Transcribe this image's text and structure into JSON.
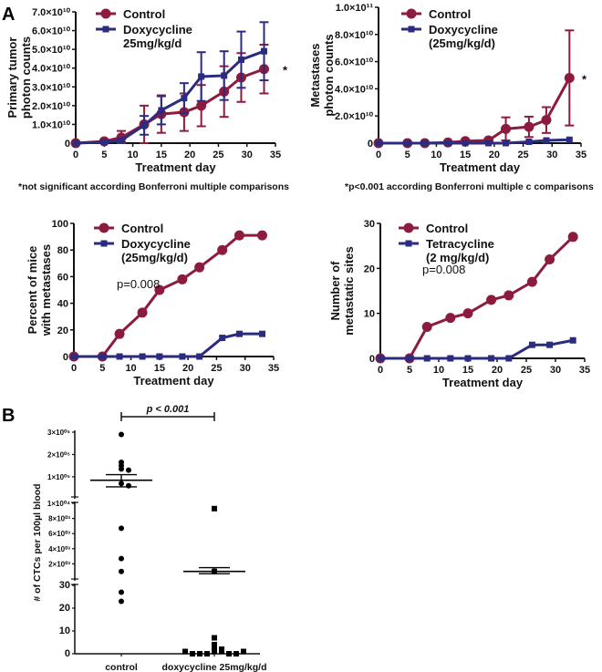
{
  "panel_labels": {
    "A": "A",
    "B": "B"
  },
  "colors": {
    "control": "#8C1B3E",
    "treatment": "#2B2B80",
    "axis": "#111111"
  },
  "chart_data": [
    {
      "id": "primary",
      "type": "line",
      "title": "",
      "xlabel": "Treatment day",
      "ylabel": [
        "Primary tumor",
        "photon counts"
      ],
      "xlim": [
        0,
        35
      ],
      "ylim": [
        0,
        70000000000.0
      ],
      "xticks": [
        "0",
        "5",
        "10",
        "15",
        "20",
        "25",
        "30",
        "35"
      ],
      "yticks": [
        "0",
        "1.0×10¹⁰",
        "2.0×10¹⁰",
        "3.0×10¹⁰",
        "4.0×10¹⁰",
        "5.0×10¹⁰",
        "6.0×10¹⁰",
        "7.0×10¹⁰"
      ],
      "ytick_values": [
        0,
        10000000000.0,
        20000000000.0,
        30000000000.0,
        40000000000.0,
        50000000000.0,
        60000000000.0,
        70000000000.0
      ],
      "legend_position": "top-left",
      "annotation": "*",
      "footnote": "*not significant according Bonferroni multiple comparisons",
      "x": [
        0,
        5,
        8,
        12,
        15,
        19,
        22,
        26,
        29,
        33
      ],
      "series": [
        {
          "name": "Control",
          "marker": "circle",
          "values": [
            0,
            1000000000.0,
            3000000000.0,
            10000000000.0,
            15500000000.0,
            16500000000.0,
            20000000000.0,
            27500000000.0,
            35000000000.0,
            39500000000.0
          ],
          "errors": [
            0,
            500000000.0,
            3500000000.0,
            10000000000.0,
            10000000000.0,
            10000000000.0,
            11000000000.0,
            13500000000.0,
            13000000000.0,
            13000000000.0
          ]
        },
        {
          "name": "Doxycycline 25mg/kg/d",
          "legend_lines": [
            "Doxycycline",
            "25mg/kg/d"
          ],
          "marker": "square",
          "values": [
            0,
            500000000.0,
            1500000000.0,
            9500000000.0,
            17500000000.0,
            24000000000.0,
            35500000000.0,
            36000000000.0,
            44500000000.0,
            49000000000.0
          ],
          "errors": [
            0,
            500000000.0,
            1000000000.0,
            5000000000.0,
            7500000000.0,
            8000000000.0,
            13000000000.0,
            13000000000.0,
            15000000000.0,
            15500000000.0
          ]
        }
      ]
    },
    {
      "id": "metastases",
      "type": "line",
      "xlabel": "Treatment day",
      "ylabel": [
        "Metastases",
        "photon counts"
      ],
      "xlim": [
        0,
        35
      ],
      "ylim": [
        0,
        100000000000.0
      ],
      "xticks": [
        "0",
        "5",
        "10",
        "15",
        "20",
        "25",
        "30",
        "35"
      ],
      "yticks": [
        "0",
        "2.0×10¹⁰",
        "4.0×10¹⁰",
        "6.0×10¹⁰",
        "8.0×10¹⁰",
        "1.0×10¹¹"
      ],
      "ytick_values": [
        0,
        20000000000.0,
        40000000000.0,
        60000000000.0,
        80000000000.0,
        100000000000.0
      ],
      "legend_position": "top-left",
      "annotation": "*",
      "footnote": "*p<0.001 according Bonferroni multiple c comparisons",
      "x": [
        0,
        5,
        8,
        12,
        15,
        19,
        22,
        26,
        29,
        33
      ],
      "series": [
        {
          "name": "Control",
          "marker": "circle",
          "values": [
            0,
            0,
            0,
            500000000.0,
            1500000000.0,
            2000000000.0,
            10500000000.0,
            12000000000.0,
            17000000000.0,
            48000000000.0
          ],
          "errors": [
            0,
            0,
            0,
            0,
            500000000.0,
            1000000000.0,
            8500000000.0,
            7500000000.0,
            9500000000.0,
            35000000000.0
          ]
        },
        {
          "name": "Doxycycline (25mg/kg/d)",
          "legend_lines": [
            "Doxycycline",
            "(25mg/kg/d)"
          ],
          "marker": "square",
          "values": [
            0,
            0,
            0,
            0,
            0,
            0,
            0,
            1000000000.0,
            2000000000.0,
            2500000000.0
          ],
          "errors": [
            0,
            0,
            0,
            0,
            0,
            0,
            0,
            0,
            0,
            0
          ]
        }
      ]
    },
    {
      "id": "percent",
      "type": "line",
      "xlabel": "Treatment day",
      "ylabel": [
        "Percent of mice",
        "with metastases"
      ],
      "xlim": [
        0,
        35
      ],
      "ylim": [
        0,
        100
      ],
      "xticks": [
        "0",
        "5",
        "10",
        "15",
        "20",
        "25",
        "30",
        "35"
      ],
      "yticks": [
        "0",
        "20",
        "40",
        "60",
        "80",
        "100"
      ],
      "ytick_values": [
        0,
        20,
        40,
        60,
        80,
        100
      ],
      "legend_position": "top-left",
      "pvalue": "p=0.008",
      "x": [
        0,
        5,
        8,
        12,
        15,
        19,
        22,
        26,
        29,
        33
      ],
      "series": [
        {
          "name": "Control",
          "marker": "circle",
          "values": [
            0,
            0,
            17,
            33,
            50,
            58,
            67,
            80,
            91,
            91
          ]
        },
        {
          "name": "Doxycycline (25mg/kg/d)",
          "legend_lines": [
            "Doxycycline",
            "(25mg/kg/d)"
          ],
          "marker": "square",
          "values": [
            0,
            0,
            0,
            0,
            0,
            0,
            0,
            14,
            17,
            17
          ]
        }
      ]
    },
    {
      "id": "sites",
      "type": "line",
      "xlabel": "Treatment day",
      "ylabel": [
        "Number of",
        "metastatic sites"
      ],
      "xlim": [
        0,
        35
      ],
      "ylim": [
        0,
        30
      ],
      "xticks": [
        "0",
        "5",
        "10",
        "15",
        "20",
        "25",
        "30",
        "35"
      ],
      "yticks": [
        "0",
        "10",
        "20",
        "30"
      ],
      "ytick_values": [
        0,
        10,
        20,
        30
      ],
      "legend_position": "top-left",
      "pvalue": "p=0.008",
      "x": [
        0,
        5,
        8,
        12,
        15,
        19,
        22,
        26,
        29,
        33
      ],
      "series": [
        {
          "name": "Control",
          "marker": "circle",
          "values": [
            0,
            0,
            7,
            9,
            10,
            13,
            14,
            17,
            22,
            27
          ]
        },
        {
          "name": "Tetracycline (2 mg/kg/d)",
          "legend_lines": [
            "Tetracycline",
            "(2 mg/kg/d)"
          ],
          "marker": "square",
          "values": [
            0,
            0,
            0,
            0,
            0,
            0,
            0,
            3,
            3,
            4
          ]
        }
      ]
    },
    {
      "id": "ctc",
      "type": "scatter",
      "ylabel": "# of CTCs per 100µl blood",
      "categories": [
        "control",
        "doxycycline 25mg/kg/d"
      ],
      "significance": "p < 0.001",
      "y_segments": [
        {
          "range": [
            0,
            30
          ],
          "ticks": [
            "0",
            "10",
            "20",
            "30"
          ],
          "tick_values": [
            0,
            10,
            20,
            30
          ]
        },
        {
          "range": [
            0,
            10000
          ],
          "ticks": [
            "2×10⁰³",
            "4×10⁰³",
            "6×10⁰³",
            "8×10⁰³",
            "1×10⁰⁴"
          ],
          "tick_values": [
            2000,
            4000,
            6000,
            8000,
            10000
          ]
        },
        {
          "range": [
            10000,
            300000
          ],
          "ticks": [
            "1×10⁰⁵",
            "2×10⁰⁵",
            "3×10⁰⁵"
          ],
          "tick_values": [
            100000,
            200000,
            300000
          ]
        }
      ],
      "groups": [
        {
          "name": "control",
          "marker": "circle",
          "points": [
            290000,
            165000,
            150000,
            135000,
            130000,
            70000,
            60000,
            6700,
            2700,
            1000,
            27,
            23
          ],
          "mean": 85000,
          "sem_upper": 110000,
          "sem_lower": 55000
        },
        {
          "name": "doxycycline 25mg/kg/d",
          "marker": "square",
          "points": [
            9300,
            1000,
            7,
            4,
            2,
            2,
            1,
            1,
            0,
            0,
            0,
            0,
            0,
            1,
            1
          ],
          "mean": 1000,
          "sem_upper": 1500,
          "sem_lower": 700
        }
      ]
    }
  ]
}
